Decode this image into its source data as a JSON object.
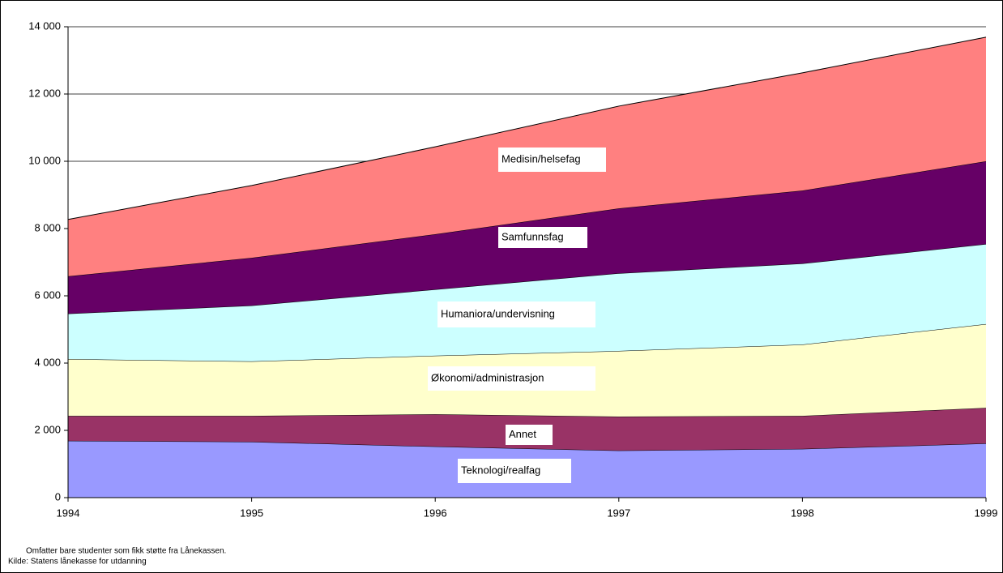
{
  "chart_data": {
    "type": "stacked_area",
    "x": [
      1994,
      1995,
      1996,
      1997,
      1998,
      1999
    ],
    "xlim": [
      1994,
      1999
    ],
    "xticks": [
      1994,
      1995,
      1996,
      1997,
      1998,
      1999
    ],
    "ylim": [
      0,
      14000
    ],
    "yticks": [
      0,
      {
        "value": 2000,
        "label": "2 000"
      },
      {
        "value": 4000,
        "label": "4 000"
      },
      {
        "value": 6000,
        "label": "6 000"
      },
      {
        "value": 8000,
        "label": "8 000"
      },
      {
        "value": 10000,
        "label": "10 000"
      },
      {
        "value": 12000,
        "label": "12 000"
      },
      {
        "value": 14000,
        "label": "14 000"
      }
    ],
    "grid": true,
    "series": [
      {
        "name": "Teknologi/realfag",
        "color": "#9999ff",
        "values": [
          1690,
          1660,
          1520,
          1400,
          1450,
          1610
        ]
      },
      {
        "name": "Annet",
        "color": "#993366",
        "values": [
          740,
          770,
          960,
          1010,
          980,
          1060
        ]
      },
      {
        "name": "Økonomi/administrasjon",
        "color": "#ffffcc",
        "values": [
          1690,
          1620,
          1740,
          1950,
          2120,
          2490
        ]
      },
      {
        "name": "Humaniora/undervisning",
        "color": "#ccffff",
        "values": [
          1350,
          1660,
          1970,
          2310,
          2410,
          2380
        ]
      },
      {
        "name": "Samfunnsfag",
        "color": "#660066",
        "values": [
          1110,
          1420,
          1640,
          1930,
          2170,
          2460
        ]
      },
      {
        "name": "Medisin/helsefag",
        "color": "#ff8080",
        "values": [
          1690,
          2150,
          2600,
          3040,
          3500,
          3690
        ]
      }
    ],
    "notes": [
      "Omfatter bare studenter som fikk støtte fra Lånekassen.",
      "Kilde: Statens lånekasse for utdanning"
    ]
  }
}
